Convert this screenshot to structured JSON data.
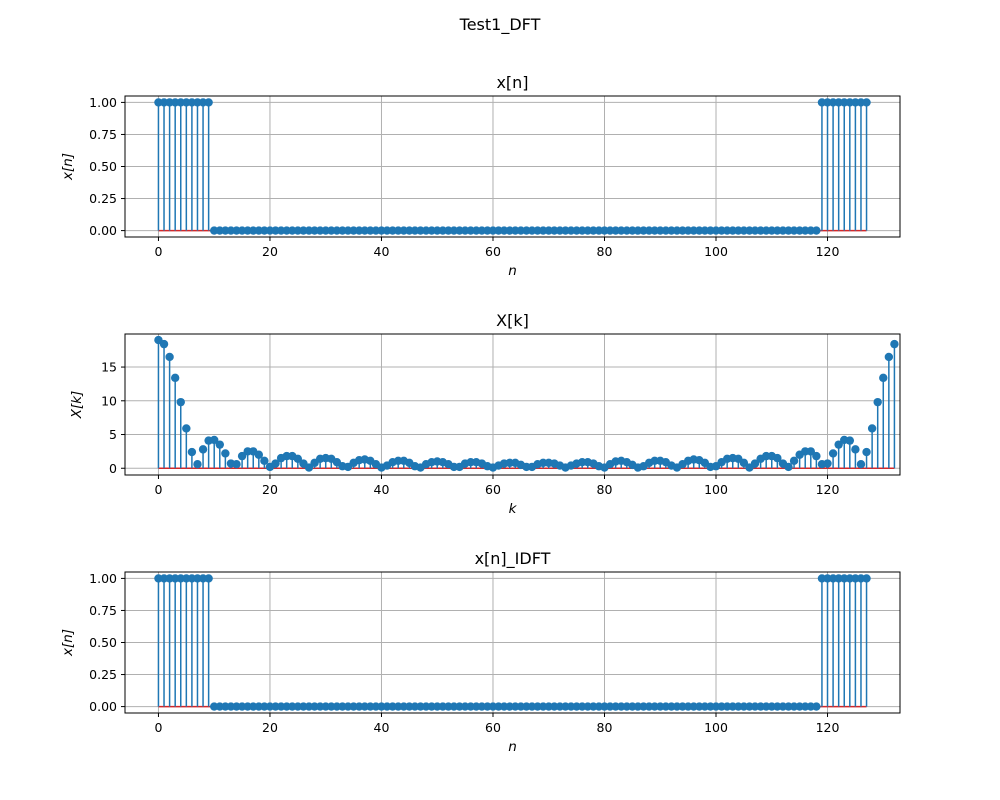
{
  "figure": {
    "suptitle": "Test1_DFT"
  },
  "chart_data": [
    {
      "type": "stem",
      "title": "x[n]",
      "xlabel": "n",
      "ylabel": "x[n]",
      "xlim": [
        -6,
        133
      ],
      "ylim": [
        -0.05,
        1.05
      ],
      "xticks": [
        0,
        20,
        40,
        60,
        80,
        100,
        120
      ],
      "xtick_labels": [
        "0",
        "20",
        "40",
        "60",
        "80",
        "100",
        "120"
      ],
      "yticks": [
        0,
        0.25,
        0.5,
        0.75,
        1
      ],
      "ytick_labels": [
        "0.00",
        "0.25",
        "0.50",
        "0.75",
        "1.00"
      ],
      "grid": true,
      "line_color": "#1f77b4",
      "marker_color": "#1f77b4",
      "baseline_color": "#d62728",
      "x_start": 0,
      "values": [
        1,
        1,
        1,
        1,
        1,
        1,
        1,
        1,
        1,
        1,
        0,
        0,
        0,
        0,
        0,
        0,
        0,
        0,
        0,
        0,
        0,
        0,
        0,
        0,
        0,
        0,
        0,
        0,
        0,
        0,
        0,
        0,
        0,
        0,
        0,
        0,
        0,
        0,
        0,
        0,
        0,
        0,
        0,
        0,
        0,
        0,
        0,
        0,
        0,
        0,
        0,
        0,
        0,
        0,
        0,
        0,
        0,
        0,
        0,
        0,
        0,
        0,
        0,
        0,
        0,
        0,
        0,
        0,
        0,
        0,
        0,
        0,
        0,
        0,
        0,
        0,
        0,
        0,
        0,
        0,
        0,
        0,
        0,
        0,
        0,
        0,
        0,
        0,
        0,
        0,
        0,
        0,
        0,
        0,
        0,
        0,
        0,
        0,
        0,
        0,
        0,
        0,
        0,
        0,
        0,
        0,
        0,
        0,
        0,
        0,
        0,
        0,
        0,
        0,
        0,
        0,
        0,
        0,
        0,
        1,
        1,
        1,
        1,
        1,
        1,
        1,
        1,
        1
      ]
    },
    {
      "type": "stem",
      "title": "X[k]",
      "xlabel": "k",
      "ylabel": "X[k]",
      "xlim": [
        -6,
        133
      ],
      "ylim": [
        -1,
        19.9
      ],
      "xticks": [
        0,
        20,
        40,
        60,
        80,
        100,
        120
      ],
      "xtick_labels": [
        "0",
        "20",
        "40",
        "60",
        "80",
        "100",
        "120"
      ],
      "yticks": [
        0,
        5,
        10,
        15
      ],
      "ytick_labels": [
        "0",
        "5",
        "10",
        "15"
      ],
      "grid": true,
      "line_color": "#1f77b4",
      "marker_color": "#1f77b4",
      "baseline_color": "#d62728",
      "x_start": 0,
      "values": [
        19,
        18.4,
        16.5,
        13.4,
        9.8,
        5.9,
        2.4,
        0.6,
        2.8,
        4.1,
        4.2,
        3.5,
        2.2,
        0.7,
        0.6,
        1.8,
        2.5,
        2.5,
        2.0,
        1.1,
        0.2,
        0.7,
        1.5,
        1.8,
        1.8,
        1.4,
        0.7,
        0.1,
        0.8,
        1.4,
        1.5,
        1.4,
        0.9,
        0.3,
        0.2,
        0.8,
        1.2,
        1.3,
        1.1,
        0.6,
        0.1,
        0.4,
        0.9,
        1.1,
        1.1,
        0.8,
        0.3,
        0.1,
        0.6,
        0.9,
        1.0,
        0.9,
        0.6,
        0.2,
        0.2,
        0.7,
        0.9,
        0.9,
        0.7,
        0.3,
        0.1,
        0.4,
        0.7,
        0.8,
        0.8,
        0.5,
        0.2,
        0.2,
        0.6,
        0.8,
        0.8,
        0.7,
        0.4,
        0.1,
        0.4,
        0.7,
        0.9,
        0.9,
        0.7,
        0.3,
        0.1,
        0.6,
        1.0,
        1.1,
        0.9,
        0.5,
        0.1,
        0.3,
        0.8,
        1.1,
        1.1,
        0.9,
        0.4,
        0.1,
        0.6,
        1.1,
        1.3,
        1.2,
        0.8,
        0.2,
        0.3,
        0.9,
        1.4,
        1.5,
        1.4,
        0.8,
        0.1,
        0.7,
        1.4,
        1.8,
        1.8,
        1.5,
        0.7,
        0.2,
        1.1,
        2.0,
        2.5,
        2.5,
        1.8,
        0.6,
        0.7,
        2.2,
        3.5,
        4.2,
        4.1,
        2.8,
        0.6,
        2.4,
        5.9,
        9.8,
        13.4,
        16.5,
        18.4
      ]
    },
    {
      "type": "stem",
      "title": "x[n]_IDFT",
      "xlabel": "n",
      "ylabel": "x[n]",
      "xlim": [
        -6,
        133
      ],
      "ylim": [
        -0.05,
        1.05
      ],
      "xticks": [
        0,
        20,
        40,
        60,
        80,
        100,
        120
      ],
      "xtick_labels": [
        "0",
        "20",
        "40",
        "60",
        "80",
        "100",
        "120"
      ],
      "yticks": [
        0,
        0.25,
        0.5,
        0.75,
        1
      ],
      "ytick_labels": [
        "0.00",
        "0.25",
        "0.50",
        "0.75",
        "1.00"
      ],
      "grid": true,
      "line_color": "#1f77b4",
      "marker_color": "#1f77b4",
      "baseline_color": "#d62728",
      "x_start": 0,
      "values": [
        1,
        1,
        1,
        1,
        1,
        1,
        1,
        1,
        1,
        1,
        0,
        0,
        0,
        0,
        0,
        0,
        0,
        0,
        0,
        0,
        0,
        0,
        0,
        0,
        0,
        0,
        0,
        0,
        0,
        0,
        0,
        0,
        0,
        0,
        0,
        0,
        0,
        0,
        0,
        0,
        0,
        0,
        0,
        0,
        0,
        0,
        0,
        0,
        0,
        0,
        0,
        0,
        0,
        0,
        0,
        0,
        0,
        0,
        0,
        0,
        0,
        0,
        0,
        0,
        0,
        0,
        0,
        0,
        0,
        0,
        0,
        0,
        0,
        0,
        0,
        0,
        0,
        0,
        0,
        0,
        0,
        0,
        0,
        0,
        0,
        0,
        0,
        0,
        0,
        0,
        0,
        0,
        0,
        0,
        0,
        0,
        0,
        0,
        0,
        0,
        0,
        0,
        0,
        0,
        0,
        0,
        0,
        0,
        0,
        0,
        0,
        0,
        0,
        0,
        0,
        0,
        0,
        0,
        0,
        1,
        1,
        1,
        1,
        1,
        1,
        1,
        1,
        1
      ]
    }
  ]
}
